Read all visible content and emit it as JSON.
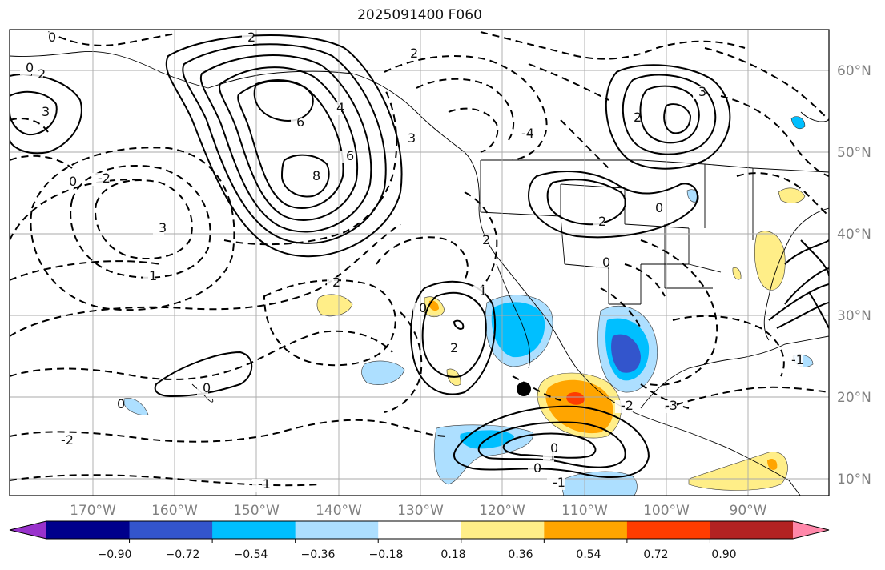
{
  "title": "2025091400 F060",
  "map": {
    "lon_ticks": [
      "170°W",
      "160°W",
      "150°W",
      "140°W",
      "130°W",
      "120°W",
      "110°W",
      "100°W",
      "90°W"
    ],
    "lat_ticks": [
      "60°N",
      "50°N",
      "40°N",
      "30°N",
      "20°N",
      "10°N"
    ],
    "contour_labels": [
      "6",
      "8",
      "6",
      "4",
      "3",
      "2",
      "3",
      "2",
      "1",
      "0",
      "-1",
      "0",
      "2",
      "3",
      "-2",
      "0",
      "2",
      "-4",
      "3",
      "2",
      "0",
      "2",
      "0",
      "1",
      "2",
      "2",
      "0",
      "1",
      "0",
      "0",
      "-1",
      "-1",
      "-2",
      "-3",
      "0",
      "0",
      "-2",
      "-1"
    ],
    "marker": "black-dot",
    "colors": {
      "neg_strong": "#3355cc",
      "neg_mid": "#00bfff",
      "neg_weak": "#addfff",
      "pos_weak": "#ffee88",
      "pos_mid": "#ffa500",
      "pos_strong": "#ff3c00",
      "grid": "#aaaaaa"
    }
  },
  "colorbar": {
    "ticks": [
      "−0.90",
      "−0.72",
      "−0.54",
      "−0.36",
      "−0.18",
      "0.18",
      "0.36",
      "0.54",
      "0.72",
      "0.90"
    ],
    "colors": [
      "#9932cc",
      "#00008b",
      "#3355cc",
      "#00bfff",
      "#addfff",
      "#ffffff",
      "#ffee88",
      "#ffa500",
      "#ff3c00",
      "#b22222",
      "#ff88aa"
    ]
  }
}
